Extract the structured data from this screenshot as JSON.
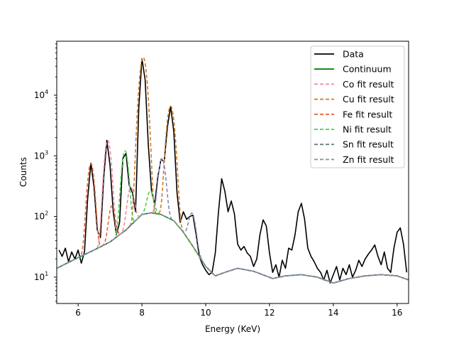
{
  "chart_data": {
    "type": "line",
    "title": "",
    "xlabel": "Energy (KeV)",
    "ylabel": "Counts",
    "xlim": [
      5.33,
      16.36
    ],
    "ylim": [
      3.68,
      77600
    ],
    "yscale": "log",
    "grid": false,
    "legend_placement": "top-right",
    "x_ticks": [
      6,
      8,
      10,
      12,
      14,
      16
    ],
    "y_ticks": [
      {
        "base": "10",
        "exp": "1",
        "value": 10
      },
      {
        "base": "10",
        "exp": "2",
        "value": 100
      },
      {
        "base": "10",
        "exp": "3",
        "value": 1000
      },
      {
        "base": "10",
        "exp": "4",
        "value": 10000
      }
    ],
    "data": {
      "name": "Data",
      "color": "#000000",
      "x_start": 5.4,
      "x_step": 0.1,
      "y": [
        28,
        22,
        30,
        18,
        26,
        20,
        28,
        17,
        26,
        200,
        760,
        300,
        60,
        45,
        420,
        1800,
        700,
        120,
        50,
        80,
        900,
        1100,
        330,
        250,
        120,
        6000,
        40000,
        18000,
        1500,
        260,
        160,
        450,
        880,
        800,
        3000,
        6500,
        2500,
        250,
        80,
        120,
        90,
        100,
        105,
        50,
        22,
        16,
        13,
        11,
        12,
        25,
        120,
        420,
        260,
        120,
        180,
        110,
        35,
        28,
        32,
        25,
        22,
        15,
        20,
        50,
        88,
        70,
        25,
        12,
        16,
        10,
        19,
        14,
        30,
        28,
        50,
        120,
        165,
        90,
        30,
        22,
        18,
        14,
        12,
        9,
        13,
        8,
        11,
        15,
        9,
        14,
        11,
        16,
        10,
        13,
        19,
        15,
        20,
        24,
        28,
        34,
        22,
        16,
        26,
        14,
        12,
        30,
        55,
        65,
        35,
        12
      ]
    },
    "continuum": {
      "name": "Continuum",
      "color": "#008000",
      "points": [
        [
          5.33,
          14
        ],
        [
          6.0,
          21
        ],
        [
          6.5,
          28
        ],
        [
          7.0,
          38
        ],
        [
          7.5,
          60
        ],
        [
          8.0,
          108
        ],
        [
          8.3,
          115
        ],
        [
          8.6,
          108
        ],
        [
          9.0,
          85
        ],
        [
          9.3,
          55
        ],
        [
          9.6,
          32
        ],
        [
          10.0,
          15
        ],
        [
          10.3,
          10.5
        ],
        [
          10.7,
          12.5
        ],
        [
          11.0,
          14
        ],
        [
          11.5,
          12.5
        ],
        [
          12.1,
          9.5
        ],
        [
          12.5,
          10.5
        ],
        [
          13.0,
          11
        ],
        [
          13.5,
          10
        ],
        [
          14.0,
          8
        ],
        [
          14.5,
          9.5
        ],
        [
          15.0,
          10.5
        ],
        [
          15.5,
          11
        ],
        [
          16.0,
          10.5
        ],
        [
          16.36,
          9
        ]
      ]
    },
    "fits": [
      {
        "name": "Co fit result",
        "color": "#f08a9e",
        "lines": [
          {
            "energy": 6.93,
            "counts": 1750,
            "sigma": 0.085
          },
          {
            "energy": 7.65,
            "counts": 230,
            "sigma": 0.09
          }
        ]
      },
      {
        "name": "Cu fit result",
        "color": "#d07a2a",
        "lines": [
          {
            "energy": 8.04,
            "counts": 42000,
            "sigma": 0.09
          },
          {
            "energy": 8.9,
            "counts": 6500,
            "sigma": 0.095
          }
        ]
      },
      {
        "name": "Fe fit result",
        "color": "#e8643a",
        "lines": [
          {
            "energy": 6.4,
            "counts": 720,
            "sigma": 0.085
          },
          {
            "energy": 7.06,
            "counts": 110,
            "sigma": 0.085
          }
        ]
      },
      {
        "name": "Ni fit result",
        "color": "#44d444",
        "lines": [
          {
            "energy": 7.47,
            "counts": 1150,
            "sigma": 0.085
          },
          {
            "energy": 8.26,
            "counts": 150,
            "sigma": 0.09
          }
        ]
      },
      {
        "name": "Sn fit result",
        "color": "#66807a",
        "lines": []
      },
      {
        "name": "Zn fit result",
        "color": "#8888bb",
        "lines": [
          {
            "energy": 8.63,
            "counts": 800,
            "sigma": 0.09
          },
          {
            "energy": 9.57,
            "counts": 80,
            "sigma": 0.095
          }
        ]
      }
    ]
  }
}
